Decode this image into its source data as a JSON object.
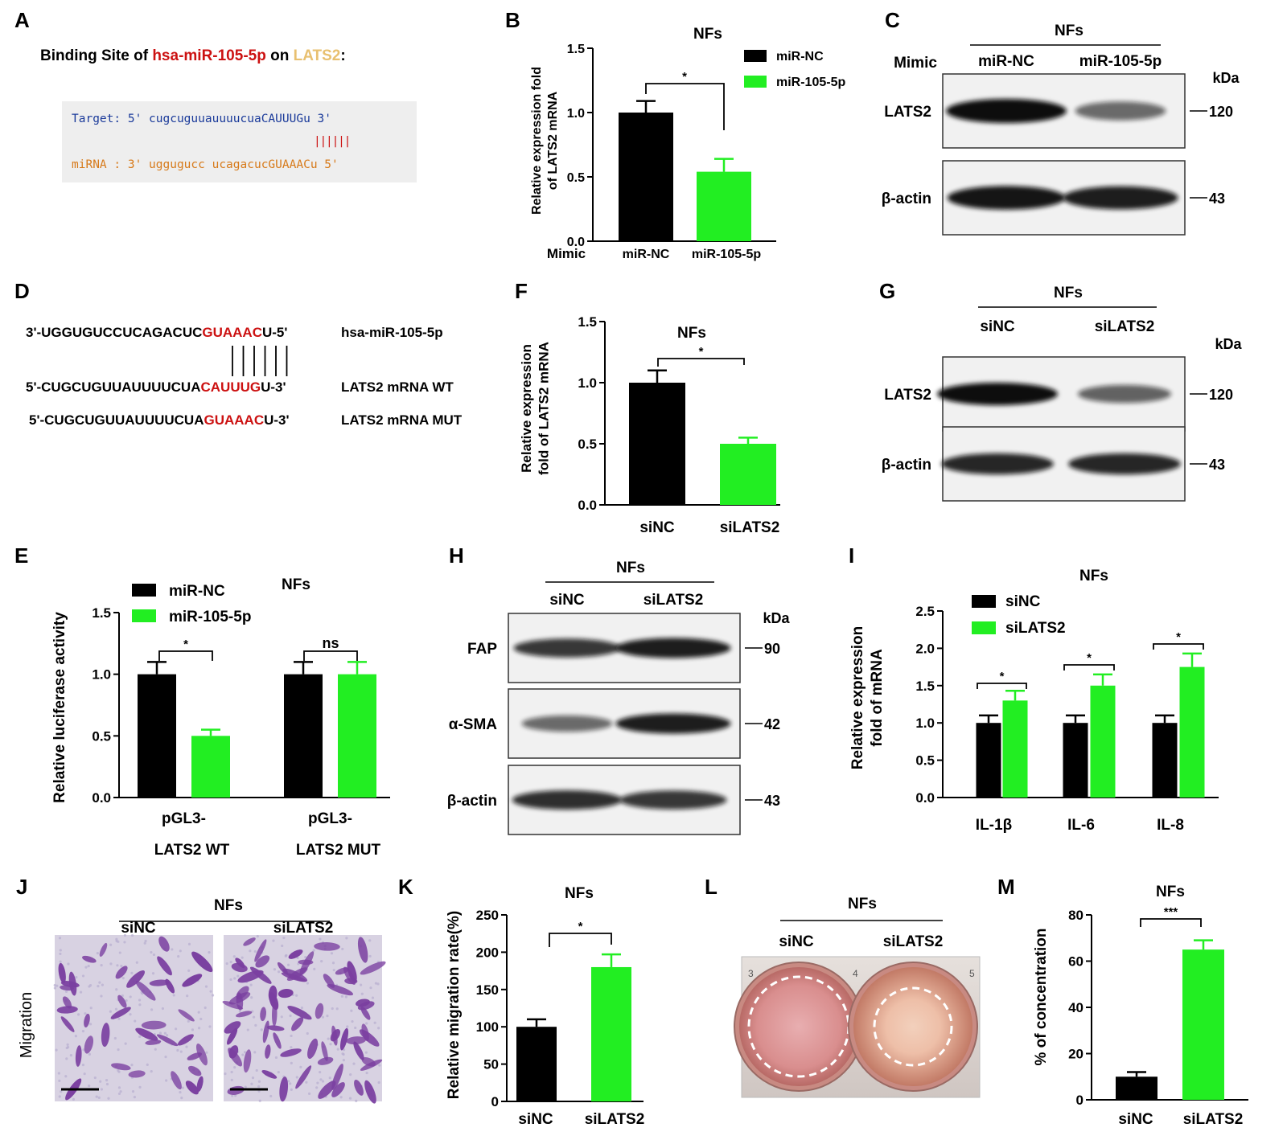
{
  "colors": {
    "black": "#000000",
    "green": "#22ee22",
    "red": "#cc1111",
    "gold": "#e8c070",
    "blue": "#1a3a9a",
    "orange": "#d77a1a",
    "crystal": "#7a3fa0"
  },
  "A": {
    "letter": "A",
    "title_prefix": "Binding Site of ",
    "title_mir": "hsa-miR-105-5p",
    "title_on": " on ",
    "title_gene": "LATS2",
    "title_colon": ":",
    "target_prefix": "Target: 5' ",
    "target_seq": "cugcuguuauuuucuaCAUUUGu",
    "target_suffix": " 3'",
    "bars": "||||||",
    "mirna_prefix": "miRNA : 3' ",
    "mirna_seq": "uggugucc ucagacucGUAAACu",
    "mirna_suffix": " 5'"
  },
  "B": {
    "letter": "B",
    "chart_data": {
      "type": "bar",
      "title": "NFs",
      "ylabel": "Relative expression fold of LATS2 mRNA",
      "xlabel_prefix": "Mimic",
      "categories": [
        "miR-NC",
        "miR-105-5p"
      ],
      "series": [
        {
          "name": "miR-NC",
          "values": [
            1.0,
            null
          ],
          "errors": [
            0.09,
            null
          ]
        },
        {
          "name": "miR-105-5p",
          "values": [
            null,
            0.54
          ],
          "errors": [
            null,
            0.1
          ]
        }
      ],
      "ylim": [
        0,
        1.5
      ],
      "yticks": [
        "0.0",
        "0.5",
        "1.0",
        "1.5"
      ],
      "significance": "*",
      "legend": "top-right"
    }
  },
  "C": {
    "letter": "C",
    "group": "NFs",
    "row_label": "Mimic",
    "lanes": [
      "miR-NC",
      "miR-105-5p"
    ],
    "unit": "kDa",
    "blots": [
      {
        "name": "LATS2",
        "kda": "120",
        "intensity": [
          1.0,
          0.45
        ]
      },
      {
        "name": "β-actin",
        "kda": "43",
        "intensity": [
          0.95,
          0.9
        ]
      }
    ]
  },
  "D": {
    "letter": "D",
    "rows": [
      {
        "pre": "3'-UGGUGUCCUCAGACUC",
        "hl": "GUAAAC",
        "post": "U-5'",
        "label": "hsa-miR-105-5p"
      },
      {
        "pre": "5'-CUGCUGUUAUUUUCUA",
        "hl": "CAUUUG",
        "post": "U-3'",
        "label": "LATS2 mRNA WT"
      },
      {
        "pre": "5'-CUGCUGUUAUUUUCUA",
        "hl": "GUAAAC",
        "post": "U-3'",
        "label": "LATS2 mRNA MUT"
      }
    ]
  },
  "E": {
    "letter": "E",
    "chart_data": {
      "type": "bar",
      "title": "NFs",
      "ylabel": "Relative luciferase activity",
      "categories": [
        "pGL3-LATS2 WT",
        "pGL3-LATS2 MUT"
      ],
      "category_lines": [
        [
          "pGL3-",
          "LATS2 WT"
        ],
        [
          "pGL3-",
          "LATS2 MUT"
        ]
      ],
      "series": [
        {
          "name": "miR-NC",
          "values": [
            1.0,
            1.0
          ],
          "errors": [
            0.1,
            0.1
          ]
        },
        {
          "name": "miR-105-5p",
          "values": [
            0.5,
            1.0
          ],
          "errors": [
            0.05,
            0.1
          ]
        }
      ],
      "ylim": [
        0,
        1.5
      ],
      "yticks": [
        "0.0",
        "0.5",
        "1.0",
        "1.5"
      ],
      "significance": [
        "*",
        "ns"
      ],
      "legend": "top-left"
    }
  },
  "F": {
    "letter": "F",
    "chart_data": {
      "type": "bar",
      "title": "NFs",
      "ylabel_lines": [
        "Relative expression",
        "fold of LATS2 mRNA"
      ],
      "categories": [
        "siNC",
        "siLATS2"
      ],
      "values": [
        1.0,
        0.5
      ],
      "errors": [
        0.1,
        0.05
      ],
      "ylim": [
        0,
        1.5
      ],
      "yticks": [
        "0.0",
        "0.5",
        "1.0",
        "1.5"
      ],
      "significance": "*"
    }
  },
  "G": {
    "letter": "G",
    "group": "NFs",
    "lanes": [
      "siNC",
      "siLATS2"
    ],
    "unit": "kDa",
    "blots": [
      {
        "name": "LATS2",
        "kda": "120",
        "intensity": [
          1.0,
          0.5
        ]
      },
      {
        "name": "β-actin",
        "kda": "43",
        "intensity": [
          0.85,
          0.85
        ]
      }
    ]
  },
  "H": {
    "letter": "H",
    "group": "NFs",
    "lanes": [
      "siNC",
      "siLATS2"
    ],
    "unit": "kDa",
    "blots": [
      {
        "name": "FAP",
        "kda": "90",
        "intensity": [
          0.75,
          0.9
        ]
      },
      {
        "name": "α-SMA",
        "kda": "42",
        "intensity": [
          0.45,
          0.9
        ]
      },
      {
        "name": "β-actin",
        "kda": "43",
        "intensity": [
          0.8,
          0.75
        ]
      }
    ]
  },
  "I": {
    "letter": "I",
    "chart_data": {
      "type": "bar",
      "title": "NFs",
      "ylabel_lines": [
        "Relative expression",
        "fold of mRNA"
      ],
      "categories": [
        "IL-1β",
        "IL-6",
        "IL-8"
      ],
      "series": [
        {
          "name": "siNC",
          "values": [
            1.0,
            1.0,
            1.0
          ],
          "errors": [
            0.1,
            0.1,
            0.1
          ]
        },
        {
          "name": "siLATS2",
          "values": [
            1.3,
            1.5,
            1.75
          ],
          "errors": [
            0.13,
            0.15,
            0.18
          ]
        }
      ],
      "ylim": [
        0,
        2.5
      ],
      "yticks": [
        "0.0",
        "0.5",
        "1.0",
        "1.5",
        "2.0",
        "2.5"
      ],
      "significance": [
        "*",
        "*",
        "*"
      ],
      "legend": "top-left"
    }
  },
  "J": {
    "letter": "J",
    "group": "NFs",
    "side_label": "Migration",
    "panels": [
      {
        "name": "siNC",
        "density": 0.55
      },
      {
        "name": "siLATS2",
        "density": 1.0
      }
    ]
  },
  "K": {
    "letter": "K",
    "chart_data": {
      "type": "bar",
      "title": "NFs",
      "ylabel": "Relative migration rate(%)",
      "categories": [
        "siNC",
        "siLATS2"
      ],
      "values": [
        100,
        180
      ],
      "errors": [
        10,
        17
      ],
      "ylim": [
        0,
        250
      ],
      "yticks": [
        "0",
        "50",
        "100",
        "150",
        "200",
        "250"
      ],
      "significance": "*"
    }
  },
  "L": {
    "letter": "L",
    "group": "NFs",
    "wells": [
      "siNC",
      "siLATS2"
    ],
    "well_numbers": [
      "3",
      "4",
      "5"
    ]
  },
  "M": {
    "letter": "M",
    "chart_data": {
      "type": "bar",
      "title": "NFs",
      "ylabel": "% of concentration",
      "categories": [
        "siNC",
        "siLATS2"
      ],
      "values": [
        10,
        65
      ],
      "errors": [
        2,
        4
      ],
      "ylim": [
        0,
        80
      ],
      "yticks": [
        "0",
        "20",
        "40",
        "60",
        "80"
      ],
      "significance": "***"
    }
  }
}
